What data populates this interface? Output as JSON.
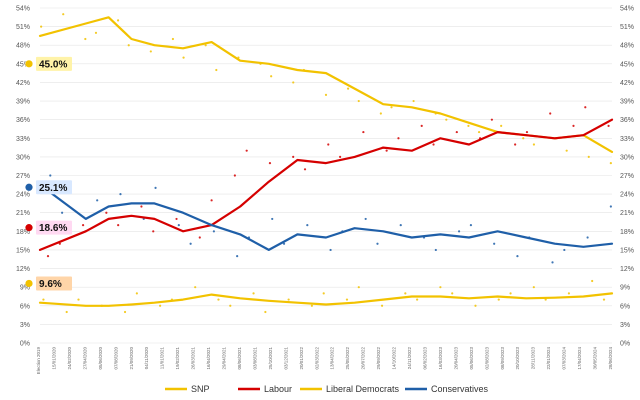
{
  "chart_data": {
    "type": "line",
    "title": "",
    "xlabel": "",
    "ylabel": "",
    "ylim": [
      0,
      54
    ],
    "y_ticks": [
      "0%",
      "3%",
      "6%",
      "9%",
      "12%",
      "15%",
      "18%",
      "21%",
      "24%",
      "27%",
      "30%",
      "33%",
      "36%",
      "39%",
      "42%",
      "45%",
      "48%",
      "51%",
      "54%"
    ],
    "x_tick_labels": [
      "Election 2019",
      "15/01/2020",
      "24/02/2020",
      "27/04/2020",
      "05/06/2020",
      "07/08/2020",
      "21/09/2020",
      "04/11/2020",
      "11/01/2021",
      "19/02/2021",
      "26/03/2021",
      "16/04/2021",
      "29/04/2021",
      "08/06/2021",
      "03/08/2021",
      "25/10/2021",
      "03/12/2021",
      "20/01/2022",
      "02/03/2022",
      "13/04/2022",
      "25/05/2022",
      "20/07/2022",
      "29/09/2022",
      "14/10/2022",
      "24/11/2022",
      "06/02/2023",
      "16/03/2023",
      "20/04/2023",
      "05/06/2023",
      "02/08/2023",
      "08/09/2023",
      "20/10/2023",
      "28/11/2023",
      "22/01/2024",
      "07/03/2024",
      "17/04/2024",
      "30/05/2024",
      "28/06/2024"
    ],
    "x": [
      0,
      0.08,
      0.12,
      0.16,
      0.2,
      0.25,
      0.3,
      0.35,
      0.4,
      0.45,
      0.5,
      0.55,
      0.6,
      0.65,
      0.7,
      0.75,
      0.8,
      0.85,
      0.9,
      0.95,
      1
    ],
    "series": [
      {
        "name": "SNP",
        "color": "#f2c200",
        "values": [
          49.5,
          51.5,
          52.5,
          49,
          48,
          47.5,
          48.5,
          45.5,
          45,
          44,
          43.5,
          41,
          38.5,
          38,
          37,
          35.5,
          34,
          33.5,
          33,
          33.5,
          30.8
        ]
      },
      {
        "name": "Labour",
        "color": "#d50000",
        "values": [
          15,
          18,
          20,
          20.5,
          20,
          18,
          19,
          22,
          26,
          29.5,
          29,
          30,
          31.5,
          31,
          33,
          32,
          34,
          33.5,
          33,
          33.5,
          36
        ]
      },
      {
        "name": "Liberal Democrats",
        "color": "#f2c200",
        "values": [
          6.5,
          6,
          6,
          6.2,
          6.5,
          7,
          7.8,
          7.2,
          6.8,
          6.5,
          6.2,
          6.5,
          7,
          7.5,
          7.5,
          7.2,
          7.5,
          7.2,
          7.3,
          7.5,
          8
        ]
      },
      {
        "name": "Conservatives",
        "color": "#1f5fa8",
        "values": [
          25.5,
          20,
          22,
          22.5,
          22.5,
          21,
          19,
          17.5,
          15,
          17.5,
          17,
          18.5,
          18,
          17,
          17.5,
          17,
          18,
          17,
          16,
          15.5,
          16
        ]
      }
    ],
    "scatter_series": [
      {
        "name": "SNP",
        "color": "#f2c200",
        "values": [
          51,
          53,
          49,
          50,
          52,
          48,
          47,
          49,
          46,
          48,
          44,
          46,
          45,
          43,
          42,
          44,
          40,
          41,
          39,
          37,
          38,
          39,
          37,
          36,
          35,
          34,
          35,
          33,
          32,
          33,
          31,
          30,
          29
        ]
      },
      {
        "name": "Labour",
        "color": "#d50000",
        "values": [
          14,
          16,
          19,
          21,
          19,
          22,
          18,
          20,
          17,
          23,
          27,
          31,
          29,
          30,
          28,
          32,
          30,
          34,
          31,
          33,
          35,
          32,
          34,
          33,
          36,
          32,
          34,
          37,
          35,
          38,
          35
        ]
      },
      {
        "name": "Liberal Democrats",
        "color": "#f2c200",
        "values": [
          7,
          5,
          7,
          6,
          5,
          8,
          6,
          7,
          9,
          7,
          6,
          8,
          5,
          7,
          6,
          8,
          7,
          9,
          6,
          8,
          7,
          9,
          8,
          6,
          7,
          8,
          9,
          7,
          8,
          10,
          7
        ]
      },
      {
        "name": "Conservatives",
        "color": "#1f5fa8",
        "values": [
          27,
          21,
          18,
          23,
          24,
          20,
          25,
          19,
          16,
          18,
          14,
          17,
          20,
          16,
          19,
          15,
          18,
          20,
          16,
          19,
          17,
          15,
          18,
          19,
          16,
          14,
          17,
          13,
          15,
          17,
          22
        ]
      }
    ],
    "labels": [
      {
        "party": "SNP",
        "text": "45.0%",
        "dot_color": "#f2c200",
        "bg_color": "#fff3a8",
        "value": 45
      },
      {
        "party": "Conservatives",
        "text": "25.1%",
        "dot_color": "#1f5fa8",
        "bg_color": "#d8e8ff",
        "value": 25.1
      },
      {
        "party": "Labour",
        "text": "18.6%",
        "dot_color": "#d50000",
        "bg_color": "#ffd9f2",
        "value": 18.6
      },
      {
        "party": "Liberal Democrats",
        "text": "9.6%",
        "dot_color": "#f2c200",
        "bg_color": "#ffd5a8",
        "value": 9.6
      }
    ],
    "legend": {
      "position": "bottom",
      "entries": [
        "SNP",
        "Labour",
        "Liberal Democrats",
        "Conservatives"
      ]
    },
    "grid": true,
    "y_axis_both_sides": true
  }
}
